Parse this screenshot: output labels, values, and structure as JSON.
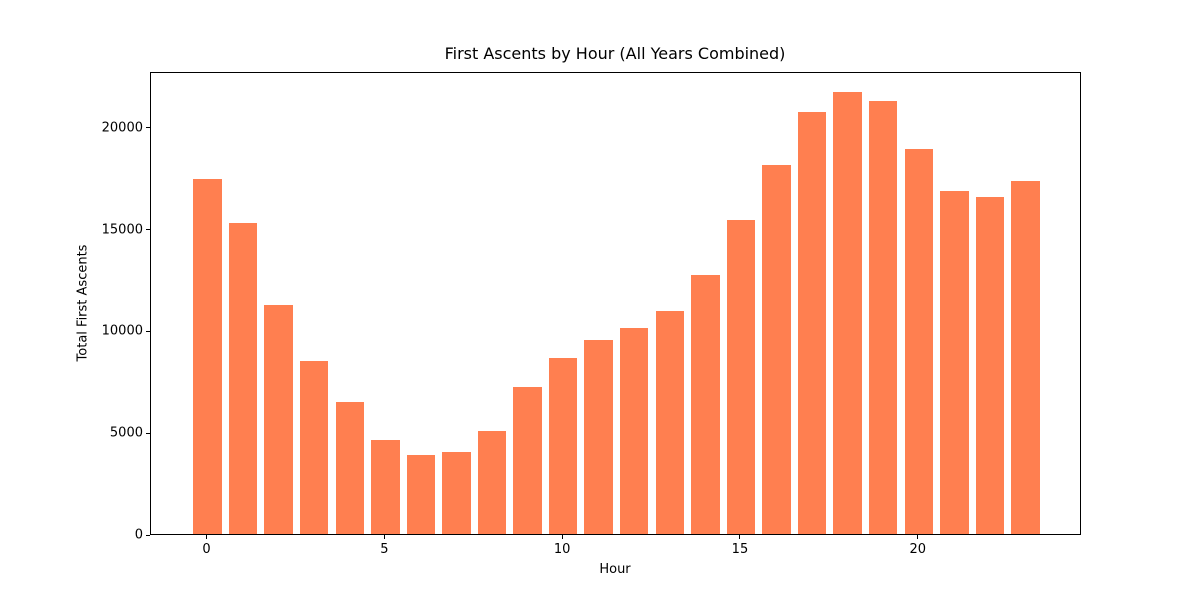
{
  "chart_data": {
    "type": "bar",
    "title": "First Ascents by Hour (All Years Combined)",
    "xlabel": "Hour",
    "ylabel": "Total First Ascents",
    "categories": [
      0,
      1,
      2,
      3,
      4,
      5,
      6,
      7,
      8,
      9,
      10,
      11,
      12,
      13,
      14,
      15,
      16,
      17,
      18,
      19,
      20,
      21,
      22,
      23
    ],
    "values": [
      17450,
      15300,
      11250,
      8500,
      6500,
      4600,
      3900,
      4050,
      5050,
      7200,
      8650,
      9550,
      10100,
      10950,
      12750,
      15450,
      18150,
      20750,
      21700,
      21300,
      18900,
      16850,
      16550,
      17350
    ],
    "bar_color": "#FF7F50",
    "axis_color": "#000000",
    "text_color": "#000000",
    "background_color": "#ffffff",
    "bar_width": 0.8,
    "xticks": [
      0,
      5,
      10,
      15,
      20
    ],
    "yticks": [
      0,
      5000,
      10000,
      15000,
      20000
    ],
    "xlim": [
      -1.59,
      24.59
    ],
    "ylim": [
      0,
      22750
    ],
    "grid": false,
    "legend_position": "none"
  }
}
